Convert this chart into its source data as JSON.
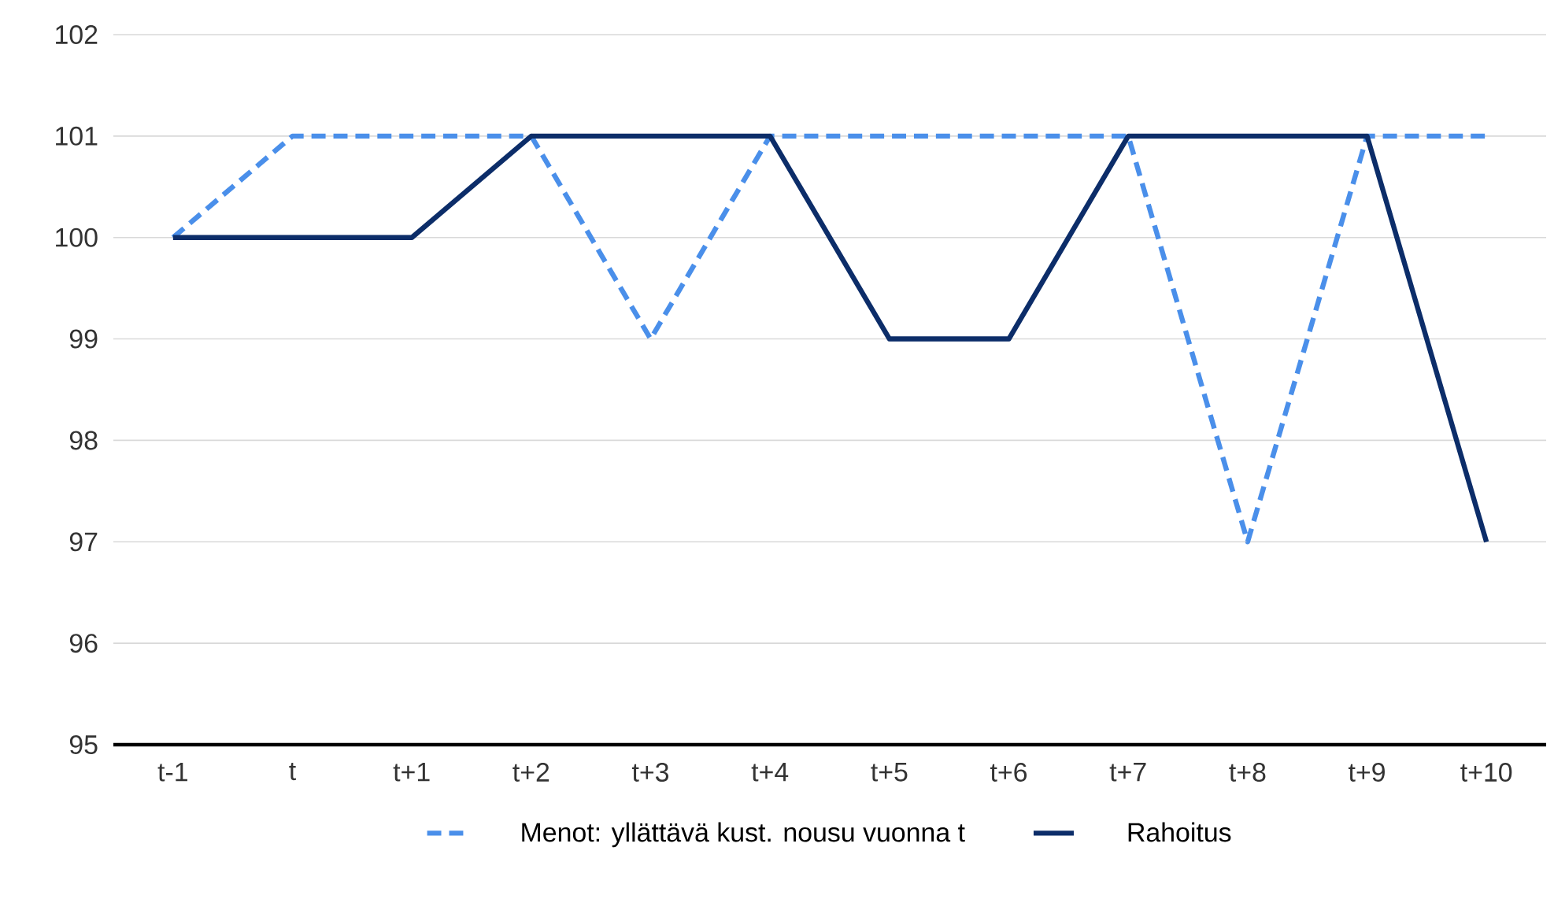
{
  "chart_data": {
    "type": "line",
    "categories": [
      "t-1",
      "t",
      "t+1",
      "t+2",
      "t+3",
      "t+4",
      "t+5",
      "t+6",
      "t+7",
      "t+8",
      "t+9",
      "t+10"
    ],
    "series": [
      {
        "name": "Menot: yllättävä kust. nousu vuonna t",
        "color": "#4a8fea",
        "line_style": "dashed",
        "values": [
          100,
          101,
          101,
          101,
          99,
          101,
          101,
          101,
          101,
          97,
          101,
          101
        ]
      },
      {
        "name": "Rahoitus",
        "color": "#0c2d69",
        "line_style": "solid",
        "values": [
          100,
          100,
          100,
          101,
          101,
          101,
          99,
          99,
          101,
          101,
          101,
          97
        ]
      }
    ],
    "ylim": [
      95,
      102
    ],
    "yticks": [
      95,
      96,
      97,
      98,
      99,
      100,
      101,
      102
    ],
    "grid": "y",
    "legend": "bottom"
  }
}
